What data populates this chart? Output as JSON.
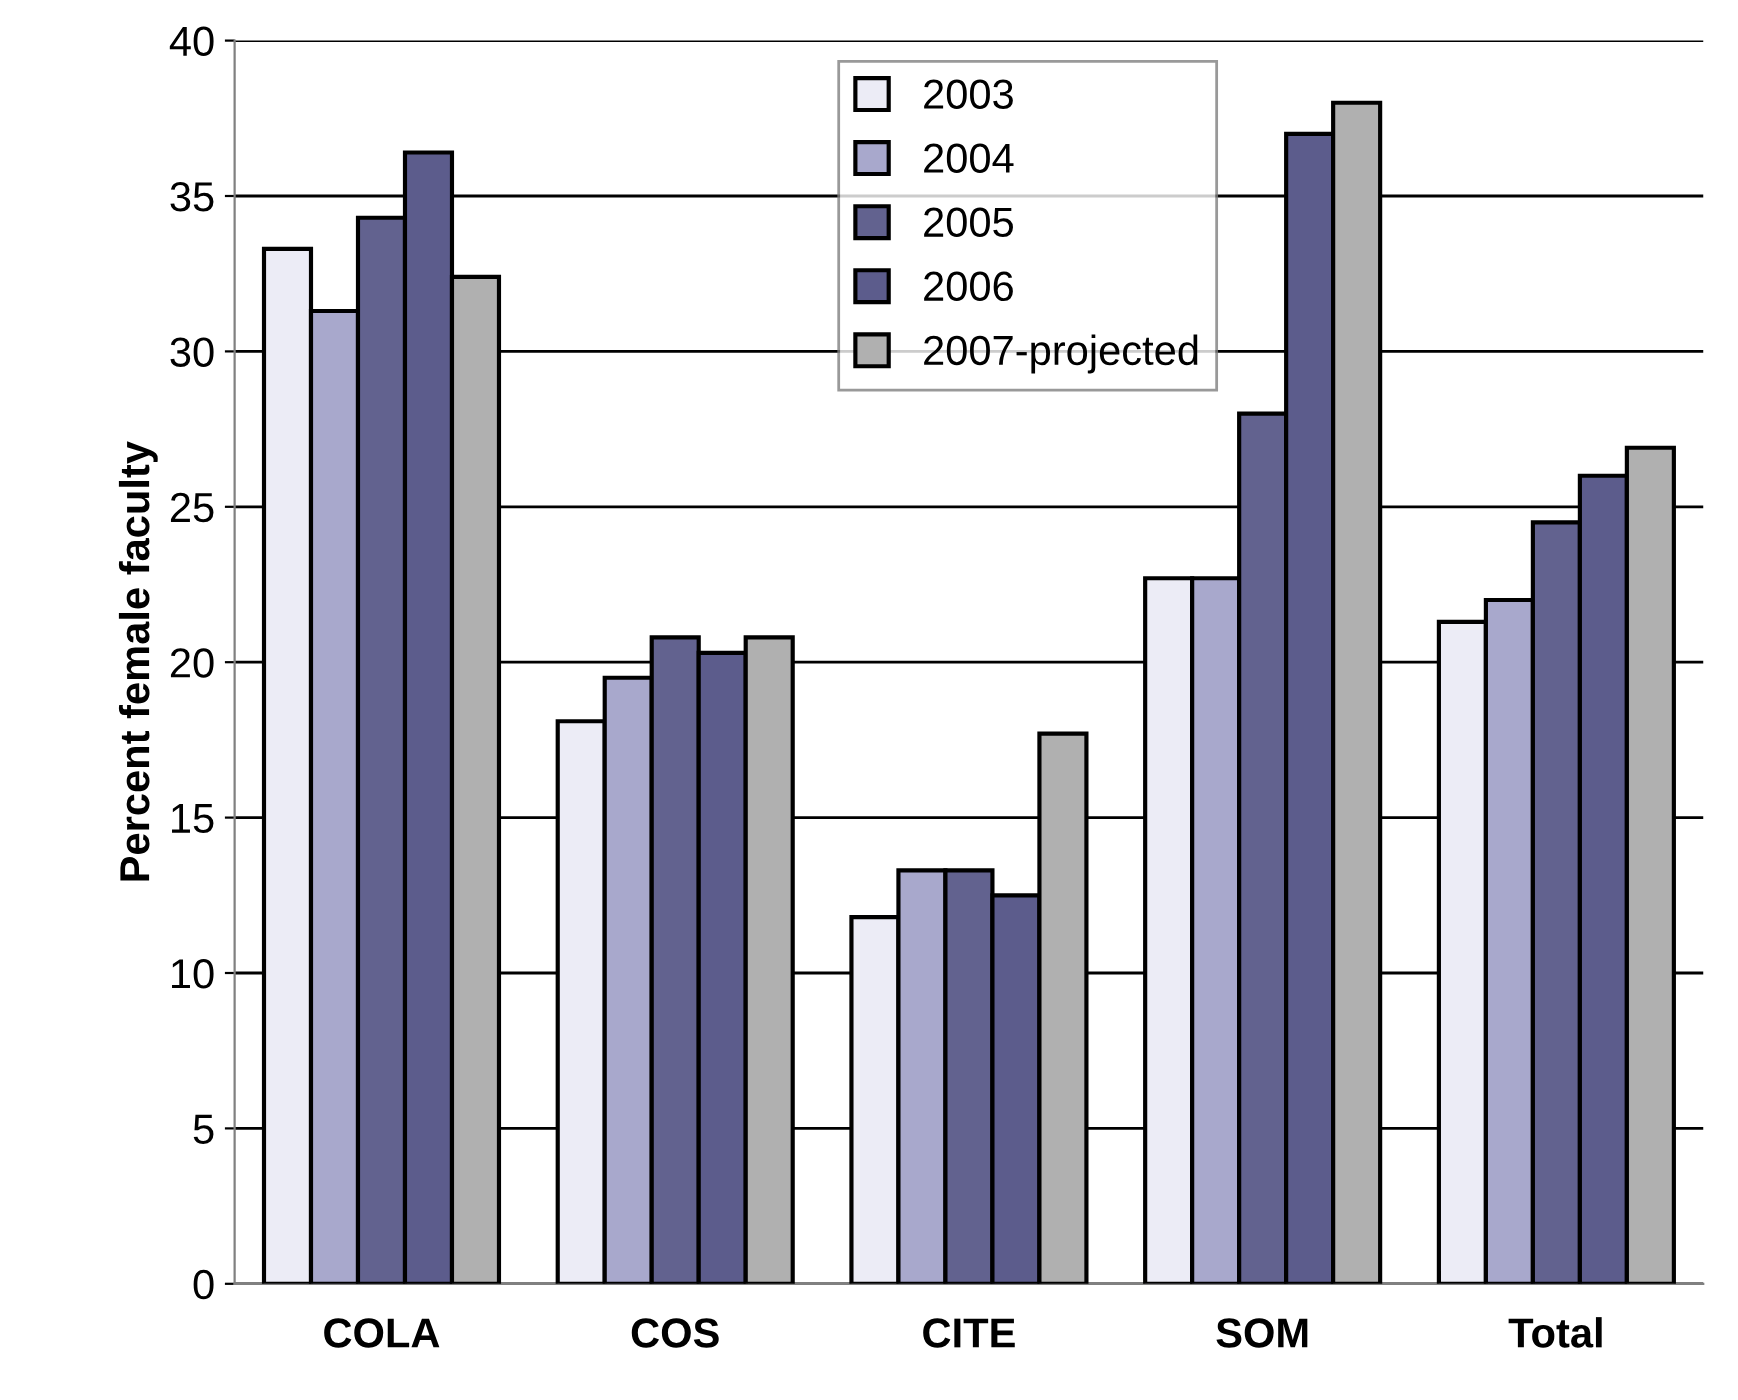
{
  "chart_data": {
    "type": "bar",
    "ylabel": "Percent female faculty",
    "categories": [
      "COLA",
      "COS",
      "CITE",
      "SOM",
      "Total"
    ],
    "series": [
      {
        "name": "2003",
        "color": "#ececf6",
        "values": [
          33.3,
          18.1,
          11.8,
          22.7,
          21.3
        ]
      },
      {
        "name": "2004",
        "color": "#a8a8cc",
        "values": [
          31.3,
          19.5,
          13.3,
          22.7,
          22.0
        ]
      },
      {
        "name": "2005",
        "color": "#62628f",
        "values": [
          34.3,
          20.8,
          13.3,
          28.0,
          24.5
        ]
      },
      {
        "name": "2006",
        "color": "#5c5c8c",
        "values": [
          36.4,
          20.3,
          12.5,
          37.0,
          26.0
        ]
      },
      {
        "name": "2007-projected",
        "color": "#b0b0b0",
        "values": [
          32.4,
          20.8,
          17.7,
          38.0,
          26.9
        ]
      }
    ],
    "ylim": [
      0,
      40
    ],
    "yticks": [
      0,
      5,
      10,
      15,
      20,
      25,
      30,
      35,
      40
    ],
    "grid": "y",
    "legend": "top"
  }
}
